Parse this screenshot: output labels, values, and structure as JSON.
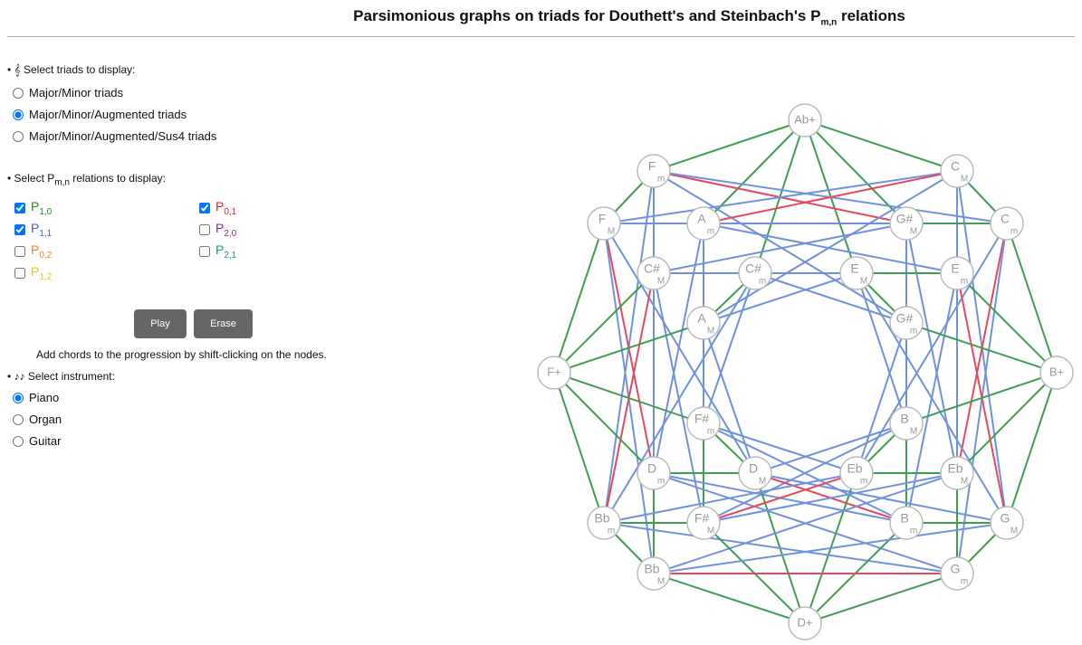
{
  "header": {
    "title": "Parsimonious graphs on triads for Douthett's and Steinbach's P",
    "title_sub": "m,n",
    "title_end": " relations"
  },
  "triads": {
    "icon": "𝄞",
    "label": "Select triads to display:",
    "selected": 1,
    "options": [
      "Major/Minor triads",
      "Major/Minor/Augmented triads",
      "Major/Minor/Augmented/Sus4 triads"
    ]
  },
  "relations": {
    "label": "Select P",
    "label_sub": "m,n",
    "label_end": " relations to display:",
    "items": [
      {
        "name": "P",
        "sub": "1,0",
        "checked": true,
        "color": "#1e8a1e",
        "edge_color": "#3f9f50"
      },
      {
        "name": "P",
        "sub": "0,1",
        "checked": true,
        "color": "#e0203c",
        "edge_color": "#e8485e"
      },
      {
        "name": "P",
        "sub": "1,1",
        "checked": true,
        "color": "#3a5fd0",
        "edge_color": "#6f92de"
      },
      {
        "name": "P",
        "sub": "2,0",
        "checked": false,
        "color": "#8a2a8a",
        "edge_color": "#8a2a8a"
      },
      {
        "name": "P",
        "sub": "0,2",
        "checked": false,
        "color": "#f0882a",
        "edge_color": "#f0882a"
      },
      {
        "name": "P",
        "sub": "2,1",
        "checked": false,
        "color": "#16968a",
        "edge_color": "#16968a"
      },
      {
        "name": "P",
        "sub": "1,2",
        "checked": false,
        "color": "#f2c41c",
        "edge_color": "#f2c41c"
      }
    ]
  },
  "buttons": [
    "Play",
    "Erase"
  ],
  "hint": "Add chords to the progression by shift-clicking on the nodes.",
  "instrument": {
    "icon": "♪♪",
    "label": "Select instrument:",
    "selected": 0,
    "options": [
      "Piano",
      "Organ",
      "Guitar"
    ]
  },
  "graph": {
    "nodes": [
      {
        "label": "Ab+"
      },
      {
        "label": "F",
        "sub": "m"
      },
      {
        "label": "C",
        "sub": "M"
      },
      {
        "label": "F",
        "sub": "M"
      },
      {
        "label": "A",
        "sub": "m"
      },
      {
        "label": "G#",
        "sub": "M"
      },
      {
        "label": "C",
        "sub": "m"
      },
      {
        "label": "C#",
        "sub": "M"
      },
      {
        "label": "C#",
        "sub": "m"
      },
      {
        "label": "E",
        "sub": "M"
      },
      {
        "label": "E",
        "sub": "m"
      },
      {
        "label": "A",
        "sub": "M"
      },
      {
        "label": "G#",
        "sub": "m"
      },
      {
        "label": "F+"
      },
      {
        "label": "B+"
      },
      {
        "label": "F#",
        "sub": "m"
      },
      {
        "label": "B",
        "sub": "M"
      },
      {
        "label": "D",
        "sub": "m"
      },
      {
        "label": "D",
        "sub": "M"
      },
      {
        "label": "Eb",
        "sub": "m"
      },
      {
        "label": "Eb",
        "sub": "M"
      },
      {
        "label": "Bb",
        "sub": "m"
      },
      {
        "label": "F#",
        "sub": "M"
      },
      {
        "label": "B",
        "sub": "m"
      },
      {
        "label": "G",
        "sub": "M"
      },
      {
        "label": "Bb",
        "sub": "M"
      },
      {
        "label": "G",
        "sub": "m"
      },
      {
        "label": "D+"
      }
    ]
  }
}
